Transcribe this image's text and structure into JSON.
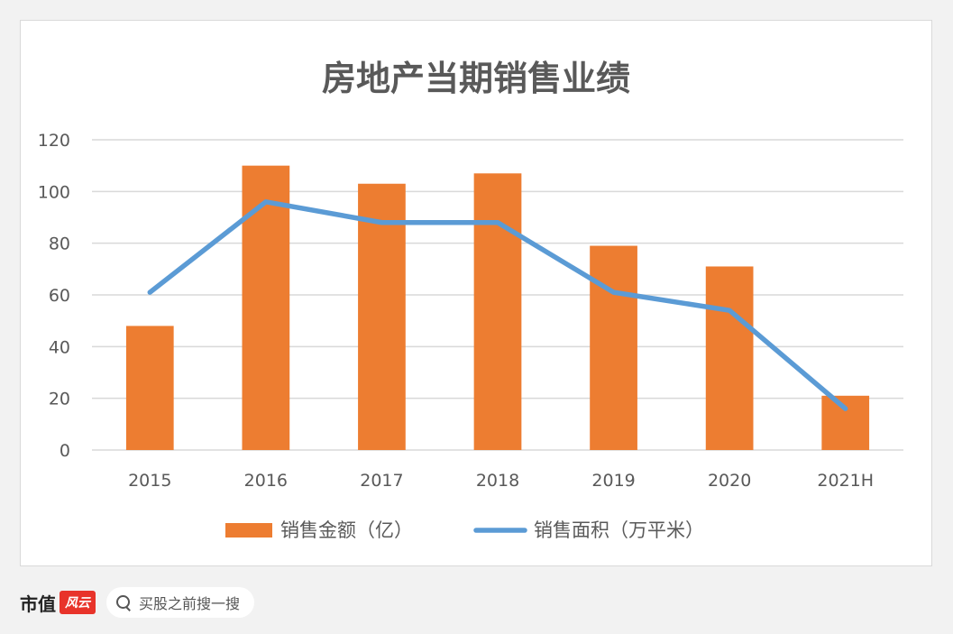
{
  "chart_data": {
    "type": "bar+line",
    "title": "房地产当期销售业绩",
    "categories": [
      "2015",
      "2016",
      "2017",
      "2018",
      "2019",
      "2020",
      "2021H"
    ],
    "ylim": [
      0,
      120
    ],
    "yticks": [
      0,
      20,
      40,
      60,
      80,
      100,
      120
    ],
    "grid": true,
    "legend_position": "bottom",
    "series": [
      {
        "name": "销售金额（亿）",
        "kind": "bar",
        "color": "#ed7d31",
        "values": [
          48,
          110,
          103,
          107,
          79,
          71,
          21
        ]
      },
      {
        "name": "销售面积（万平米）",
        "kind": "line",
        "color": "#5b9bd5",
        "values": [
          61,
          96,
          88,
          88,
          61,
          54,
          16
        ]
      }
    ]
  },
  "footer": {
    "brand_text": "市值",
    "brand_seal": "风云",
    "search_text": "买股之前搜一搜"
  },
  "colors": {
    "bar": "#ed7d31",
    "line": "#5b9bd5",
    "grid": "#d9d9d9",
    "axis_text": "#595959",
    "title_text": "#595959"
  }
}
